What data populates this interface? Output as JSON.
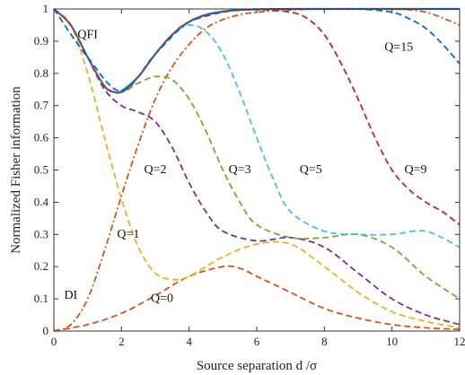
{
  "chart_data": {
    "type": "line",
    "xlabel": "Source separation d /σ",
    "ylabel": "Normalized Fisher information",
    "xlim": [
      0,
      12
    ],
    "ylim": [
      0,
      1
    ],
    "xticks": [
      "0",
      "2",
      "4",
      "6",
      "8",
      "10",
      "12"
    ],
    "yticks": [
      "0",
      "0.1",
      "0.2",
      "0.3",
      "0.4",
      "0.5",
      "0.6",
      "0.7",
      "0.8",
      "0.9",
      "1"
    ],
    "grid": false,
    "series": [
      {
        "name": "QFI",
        "color": "#1f6fbf",
        "dash": "solid",
        "x": [
          0,
          0.5,
          1,
          1.5,
          1.8,
          2,
          2.5,
          3,
          3.5,
          4,
          4.5,
          5,
          5.5,
          6,
          7,
          8,
          9,
          10,
          11,
          12
        ],
        "y": [
          1,
          0.95,
          0.85,
          0.76,
          0.742,
          0.745,
          0.79,
          0.86,
          0.92,
          0.96,
          0.982,
          0.992,
          0.997,
          0.999,
          1,
          1,
          1,
          1,
          1,
          1
        ]
      },
      {
        "name": "DI",
        "color": "#d95319",
        "dash": "dashdot",
        "x": [
          0,
          0.5,
          1,
          1.5,
          2,
          2.5,
          3,
          3.5,
          4,
          4.5,
          5,
          5.5,
          6,
          7,
          8,
          9,
          10,
          11,
          12
        ],
        "y": [
          0,
          0.02,
          0.1,
          0.25,
          0.42,
          0.58,
          0.72,
          0.82,
          0.89,
          0.94,
          0.967,
          0.982,
          0.99,
          0.997,
          1,
          1,
          1,
          0.99,
          0.95
        ]
      },
      {
        "name": "Q=0",
        "color": "#d95319",
        "dash": "dashed",
        "x": [
          0,
          1,
          2,
          3,
          4,
          5,
          5.5,
          6,
          7,
          8,
          9,
          10,
          11,
          12
        ],
        "y": [
          0,
          0.02,
          0.055,
          0.11,
          0.17,
          0.2,
          0.195,
          0.17,
          0.12,
          0.07,
          0.04,
          0.02,
          0.01,
          0.005
        ]
      },
      {
        "name": "Q=1",
        "color": "#edb120",
        "dash": "dashed",
        "x": [
          0,
          0.5,
          1,
          1.5,
          2,
          2.5,
          3,
          3.5,
          4,
          5,
          6,
          7,
          8,
          9,
          10,
          11,
          12
        ],
        "y": [
          1,
          0.95,
          0.8,
          0.6,
          0.41,
          0.26,
          0.18,
          0.16,
          0.17,
          0.23,
          0.27,
          0.27,
          0.2,
          0.12,
          0.06,
          0.03,
          0.01
        ]
      },
      {
        "name": "Q=2",
        "color": "#7e2f8e",
        "dash": "dashed",
        "x": [
          0,
          0.5,
          1,
          1.5,
          2,
          2.5,
          3,
          3.5,
          4,
          4.5,
          5,
          6,
          7,
          8,
          9,
          10,
          11,
          12
        ],
        "y": [
          1,
          0.95,
          0.85,
          0.75,
          0.7,
          0.68,
          0.65,
          0.57,
          0.46,
          0.37,
          0.31,
          0.28,
          0.29,
          0.26,
          0.18,
          0.1,
          0.05,
          0.02
        ]
      },
      {
        "name": "Q=3",
        "color": "#77ac30",
        "dash": "dashed",
        "x": [
          0,
          0.5,
          1,
          1.5,
          2,
          2.5,
          3,
          3.5,
          4,
          4.5,
          5,
          5.5,
          6,
          7,
          8,
          9,
          10,
          11,
          12
        ],
        "y": [
          1,
          0.95,
          0.85,
          0.76,
          0.742,
          0.77,
          0.79,
          0.78,
          0.72,
          0.62,
          0.5,
          0.4,
          0.33,
          0.29,
          0.29,
          0.3,
          0.26,
          0.17,
          0.1
        ]
      },
      {
        "name": "Q=5",
        "color": "#4dbeee",
        "dash": "dashed",
        "x": [
          0,
          0.5,
          1,
          1.5,
          2,
          2.5,
          3,
          3.5,
          4,
          4.5,
          5,
          5.5,
          6,
          6.5,
          7,
          8,
          9,
          10,
          11,
          12
        ],
        "y": [
          1,
          0.95,
          0.85,
          0.76,
          0.742,
          0.79,
          0.86,
          0.92,
          0.95,
          0.93,
          0.86,
          0.74,
          0.6,
          0.47,
          0.37,
          0.31,
          0.3,
          0.3,
          0.31,
          0.26
        ]
      },
      {
        "name": "Q=9",
        "color": "#c1272d",
        "dash": "dashed",
        "x": [
          0,
          0.5,
          1,
          1.5,
          2,
          2.5,
          3,
          3.5,
          4,
          5,
          6,
          7,
          7.5,
          8,
          8.5,
          9,
          9.5,
          10,
          10.5,
          11,
          11.5,
          12
        ],
        "y": [
          1,
          0.95,
          0.85,
          0.76,
          0.742,
          0.79,
          0.86,
          0.92,
          0.96,
          0.99,
          0.998,
          0.99,
          0.97,
          0.92,
          0.83,
          0.72,
          0.6,
          0.5,
          0.44,
          0.4,
          0.37,
          0.33
        ]
      },
      {
        "name": "Q=15",
        "color": "#0072bd",
        "dash": "dashed",
        "x": [
          0,
          1,
          2,
          3,
          4,
          5,
          6,
          7,
          8,
          9,
          10,
          10.5,
          11,
          11.5,
          12
        ],
        "y": [
          1,
          0.85,
          0.745,
          0.86,
          0.96,
          0.992,
          0.999,
          1,
          1,
          1,
          0.99,
          0.97,
          0.94,
          0.89,
          0.83
        ]
      }
    ],
    "annotations": [
      {
        "text": "QFI",
        "x": 1.0,
        "y": 0.91
      },
      {
        "text": "DI",
        "x": 0.5,
        "y": 0.1
      },
      {
        "text": "Q=0",
        "x": 3.2,
        "y": 0.09
      },
      {
        "text": "Q=1",
        "x": 2.2,
        "y": 0.29
      },
      {
        "text": "Q=2",
        "x": 3.0,
        "y": 0.49
      },
      {
        "text": "Q=3",
        "x": 5.5,
        "y": 0.49
      },
      {
        "text": "Q=5",
        "x": 7.6,
        "y": 0.49
      },
      {
        "text": "Q=9",
        "x": 10.7,
        "y": 0.49
      },
      {
        "text": "Q=15",
        "x": 10.2,
        "y": 0.87
      }
    ]
  }
}
